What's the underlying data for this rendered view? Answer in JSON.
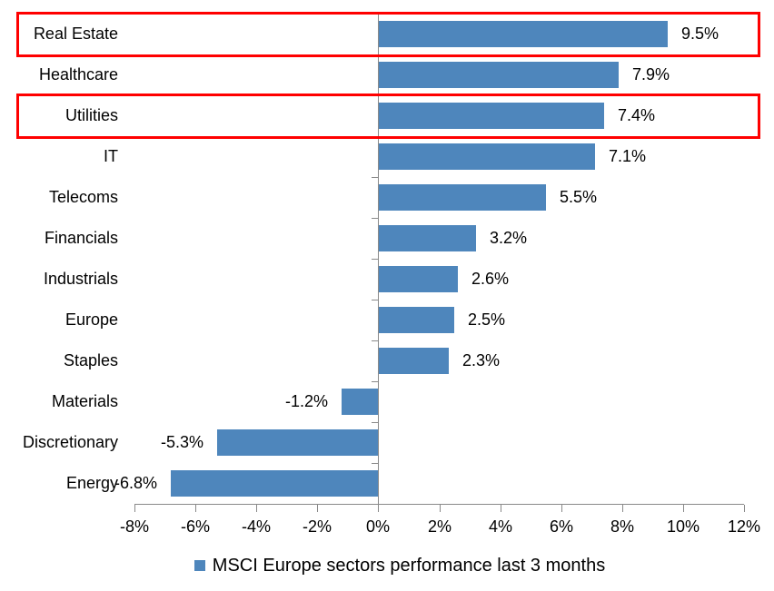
{
  "chart_data": {
    "type": "bar",
    "orientation": "horizontal",
    "title": "",
    "xlabel": "",
    "ylabel": "",
    "categories": [
      "Real Estate",
      "Healthcare",
      "Utilities",
      "IT",
      "Telecoms",
      "Financials",
      "Industrials",
      "Europe",
      "Staples",
      "Materials",
      "Discretionary",
      "Energy"
    ],
    "values": [
      9.5,
      7.9,
      7.4,
      7.1,
      5.5,
      3.2,
      2.6,
      2.5,
      2.3,
      -1.2,
      -5.3,
      -6.8
    ],
    "data_labels": [
      "9.5%",
      "7.9%",
      "7.4%",
      "7.1%",
      "5.5%",
      "3.2%",
      "2.6%",
      "2.5%",
      "2.3%",
      "-1.2%",
      "-5.3%",
      "-6.8%"
    ],
    "xlim": [
      -8,
      12
    ],
    "x_ticks": [
      -8,
      -6,
      -4,
      -2,
      0,
      2,
      4,
      6,
      8,
      10,
      12
    ],
    "x_tick_labels": [
      "-8%",
      "-6%",
      "-4%",
      "-2%",
      "0%",
      "2%",
      "4%",
      "6%",
      "8%",
      "10%",
      "12%"
    ],
    "grid": false,
    "legend_position": "bottom-center",
    "legend": [
      {
        "label": "MSCI Europe sectors performance last 3 months",
        "color": "#4E86BC"
      }
    ],
    "bar_color": "#4E86BC",
    "axis_color": "#898989",
    "text_color": "#000000",
    "highlight_color": "#FF0000",
    "highlighted_categories": [
      "Real Estate",
      "Utilities"
    ]
  }
}
